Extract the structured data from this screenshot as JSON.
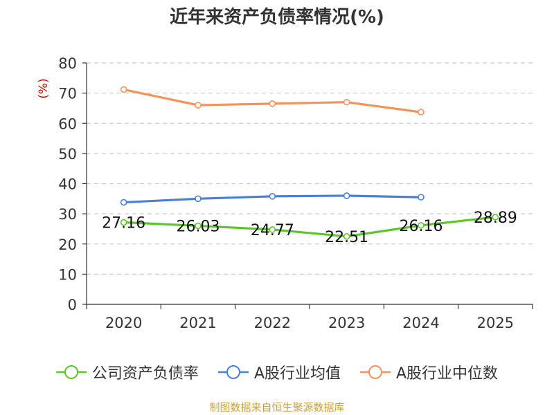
{
  "chart_data": {
    "type": "line",
    "title": "近年来资产负债率情况(%)",
    "ylabel": "(%)",
    "categories": [
      "2020",
      "2021",
      "2022",
      "2023",
      "2024",
      "2025"
    ],
    "ylim": [
      0,
      80
    ],
    "yticks": [
      0,
      10,
      20,
      30,
      40,
      50,
      60,
      70,
      80
    ],
    "grid": true,
    "legend_position": "bottom",
    "series": [
      {
        "name": "公司资产负债率",
        "color": "#5cc52b",
        "values": [
          27.16,
          26.03,
          24.77,
          22.51,
          26.16,
          28.89
        ],
        "labels": [
          "27.16",
          "26.03",
          "24.77",
          "22.51",
          "26.16",
          "28.89"
        ]
      },
      {
        "name": "A股行业均值",
        "color": "#4a7fd6",
        "values": [
          33.8,
          35.0,
          35.8,
          36.0,
          35.5,
          null
        ]
      },
      {
        "name": "A股行业中位数",
        "color": "#f5915a",
        "values": [
          71.2,
          66.0,
          66.5,
          67.0,
          63.7,
          null
        ]
      }
    ]
  },
  "source_note": "制图数据来自恒生聚源数据库"
}
